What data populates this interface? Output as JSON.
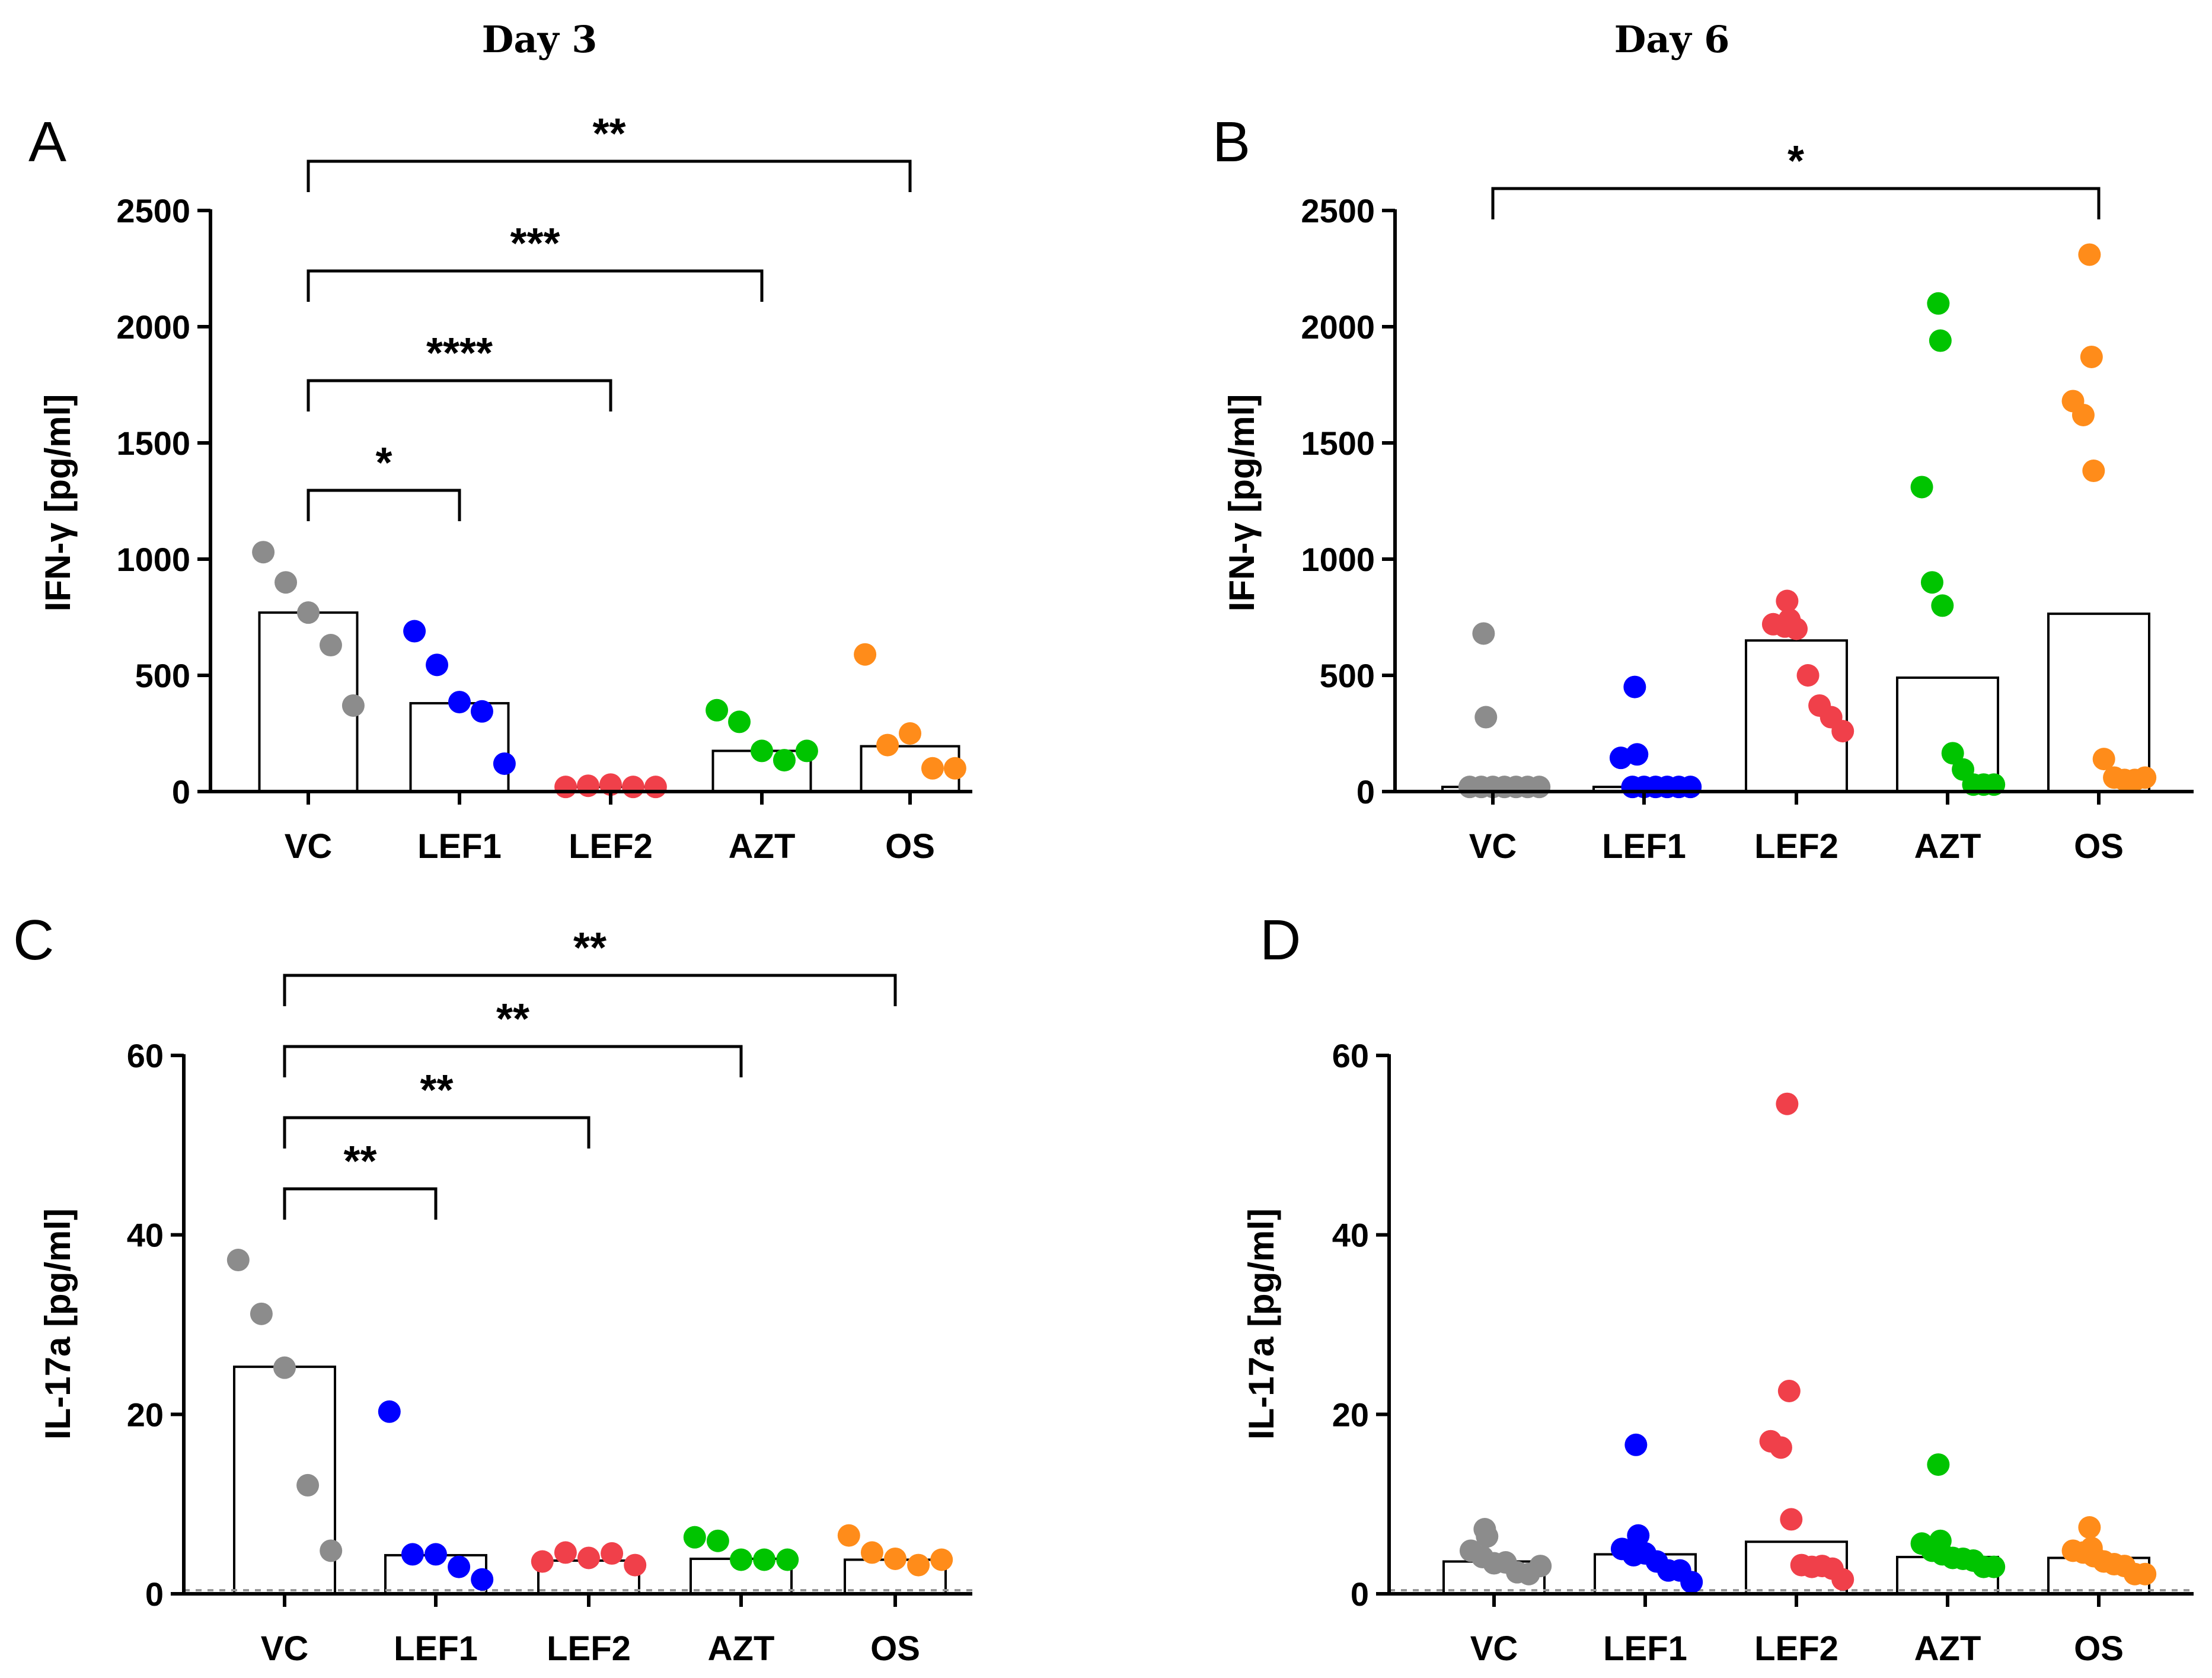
{
  "column_labels": [
    "Day 3",
    "Day 6"
  ],
  "colors": {
    "VC": "#8c8c8c",
    "LEF1": "#0000ff",
    "LEF2": "#f0404a",
    "AZT": "#00c400",
    "OS": "#ff8c1a"
  },
  "chart_data": [
    {
      "panel": "A",
      "type": "scatter",
      "ylabel": "IFN-γ [pg/ml]",
      "ylim": [
        0,
        2500
      ],
      "yticks": [
        0,
        500,
        1000,
        1500,
        2000,
        2500
      ],
      "categories": [
        "VC",
        "LEF1",
        "LEF2",
        "AZT",
        "OS"
      ],
      "bars": [
        770,
        380,
        20,
        175,
        195
      ],
      "points": [
        [
          1030,
          900,
          770,
          630,
          370
        ],
        [
          690,
          545,
          385,
          345,
          120
        ],
        [
          20,
          25,
          30,
          20,
          20
        ],
        [
          350,
          300,
          175,
          135,
          175
        ],
        [
          590,
          200,
          250,
          100,
          100
        ]
      ],
      "significance": [
        {
          "from": "VC",
          "to": "LEF1",
          "label": "*"
        },
        {
          "from": "VC",
          "to": "LEF2",
          "label": "****"
        },
        {
          "from": "VC",
          "to": "AZT",
          "label": "***"
        },
        {
          "from": "VC",
          "to": "OS",
          "label": "**"
        }
      ],
      "dashed_baseline": false
    },
    {
      "panel": "B",
      "type": "scatter",
      "ylabel": "IFN-γ [pg/ml]",
      "ylim": [
        0,
        2500
      ],
      "yticks": [
        0,
        500,
        1000,
        1500,
        2000,
        2500
      ],
      "categories": [
        "VC",
        "LEF1",
        "LEF2",
        "AZT",
        "OS"
      ],
      "bars": [
        20,
        20,
        650,
        490,
        765
      ],
      "points": [
        [
          680,
          320,
          20,
          20,
          20,
          20,
          20,
          20,
          20
        ],
        [
          450,
          160,
          145,
          20,
          20,
          20,
          20,
          20,
          20
        ],
        [
          820,
          740,
          720,
          710,
          700,
          500,
          370,
          320,
          260
        ],
        [
          2100,
          1940,
          1310,
          900,
          800,
          165,
          95,
          30,
          30,
          30
        ],
        [
          2310,
          1870,
          1680,
          1620,
          1380,
          140,
          60,
          50,
          50,
          60
        ]
      ],
      "significance": [
        {
          "from": "VC",
          "to": "OS",
          "label": "*"
        }
      ],
      "dashed_baseline": false
    },
    {
      "panel": "C",
      "type": "scatter",
      "ylabel": "IL-17a [pg/ml]",
      "ylim": [
        0,
        60
      ],
      "yticks": [
        0,
        20,
        40,
        60
      ],
      "categories": [
        "VC",
        "LEF1",
        "LEF2",
        "AZT",
        "OS"
      ],
      "bars": [
        25.3,
        4.3,
        3.7,
        3.9,
        3.8
      ],
      "points": [
        [
          37.2,
          31.2,
          25.2,
          12.1,
          4.8
        ],
        [
          20.3,
          4.4,
          4.4,
          3.0,
          1.6
        ],
        [
          3.6,
          4.6,
          4.0,
          4.5,
          3.2
        ],
        [
          6.3,
          5.9,
          3.8,
          3.8,
          3.8
        ],
        [
          6.5,
          4.6,
          3.9,
          3.2,
          3.8
        ]
      ],
      "significance": [
        {
          "from": "VC",
          "to": "LEF1",
          "label": "**"
        },
        {
          "from": "VC",
          "to": "LEF2",
          "label": "**"
        },
        {
          "from": "VC",
          "to": "AZT",
          "label": "**"
        },
        {
          "from": "VC",
          "to": "OS",
          "label": "**"
        }
      ],
      "dashed_baseline": true
    },
    {
      "panel": "D",
      "type": "scatter",
      "ylabel": "IL-17a [pg/ml]",
      "ylim": [
        0,
        60
      ],
      "yticks": [
        0,
        20,
        40,
        60
      ],
      "categories": [
        "VC",
        "LEF1",
        "LEF2",
        "AZT",
        "OS"
      ],
      "bars": [
        3.6,
        4.4,
        5.8,
        4.1,
        4.0
      ],
      "points": [
        [
          7.2,
          6.4,
          4.8,
          4.1,
          3.4,
          3.5,
          2.4,
          2.2,
          3.1
        ],
        [
          16.6,
          6.5,
          5.0,
          4.3,
          4.5,
          3.6,
          2.6,
          2.6,
          1.3
        ],
        [
          54.6,
          22.6,
          17.0,
          16.3,
          8.3,
          3.2,
          3.0,
          3.1,
          2.8,
          1.6
        ],
        [
          14.4,
          5.9,
          5.6,
          4.8,
          4.4,
          4.0,
          3.9,
          3.7,
          3.0,
          3.0
        ],
        [
          7.4,
          5.1,
          4.8,
          4.6,
          4.2,
          3.6,
          3.3,
          3.1,
          2.2,
          2.2
        ]
      ],
      "significance": [],
      "dashed_baseline": true
    }
  ]
}
